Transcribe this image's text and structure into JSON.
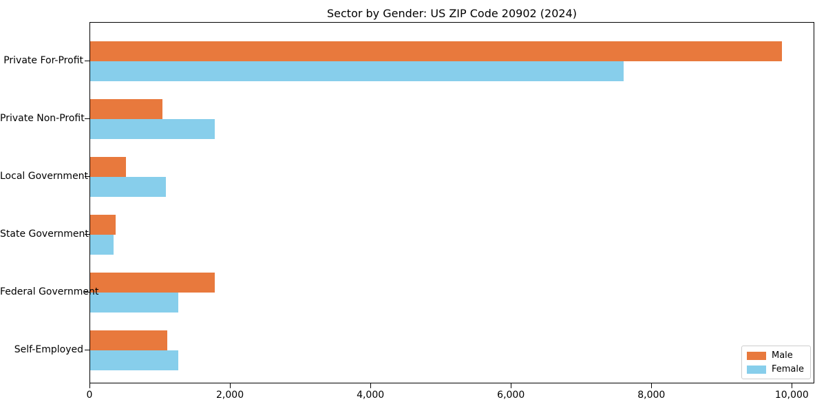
{
  "chart_data": {
    "type": "bar",
    "orientation": "horizontal",
    "title": "Sector by Gender: US ZIP Code 20902 (2024)",
    "categories": [
      "Private For-Profit",
      "Private Non-Profit",
      "Local Government",
      "State Government",
      "Federal Government",
      "Self-Employed"
    ],
    "series": [
      {
        "name": "Male",
        "color": "#E8793D",
        "values": [
          9850,
          1030,
          510,
          360,
          1770,
          1100
        ]
      },
      {
        "name": "Female",
        "color": "#87CEEB",
        "values": [
          7600,
          1770,
          1080,
          330,
          1250,
          1250
        ]
      }
    ],
    "xlabel": "",
    "ylabel": "",
    "xlim": [
      0,
      10320
    ],
    "xticks": {
      "values": [
        0,
        2000,
        4000,
        6000,
        8000,
        10000
      ],
      "labels": [
        "0",
        "2,000",
        "4,000",
        "6,000",
        "8,000",
        "10,000"
      ]
    },
    "grid": false,
    "legend": {
      "position": "lower right"
    },
    "colors": {
      "male": "#E8793D",
      "female": "#87CEEB",
      "axis": "#000000",
      "legend_border": "#cccccc"
    }
  }
}
